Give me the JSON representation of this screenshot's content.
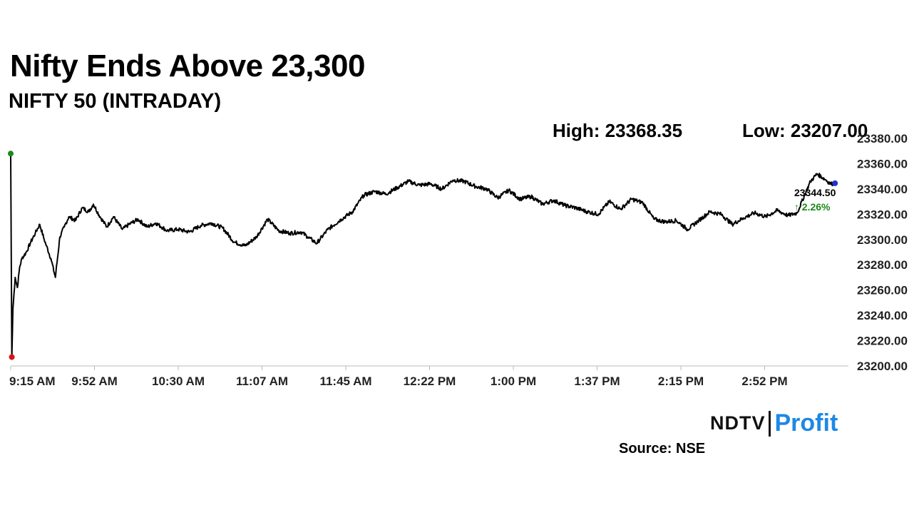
{
  "chart_data": {
    "type": "line",
    "title": "Nifty Ends Above 23,300",
    "subtitle": "NIFTY 50 (INTRADAY)",
    "high_label": "High: 23368.35",
    "low_label": "Low: 23207.00",
    "x_ticks": [
      "9:15 AM",
      "9:52 AM",
      "10:30 AM",
      "11:07 AM",
      "11:45 AM",
      "12:22 PM",
      "1:00 PM",
      "1:37 PM",
      "2:15 PM",
      "2:52 PM"
    ],
    "y_ticks": [
      "23200.00",
      "23220.00",
      "23240.00",
      "23260.00",
      "23280.00",
      "23300.00",
      "23320.00",
      "23340.00",
      "23360.00",
      "23380.00"
    ],
    "ylim": [
      23200,
      23380
    ],
    "x_range_minutes": [
      0,
      375
    ],
    "last_value_label": "23344.50",
    "change_label": "↑ 2.26%",
    "colors": {
      "line": "#000000",
      "high_marker": "#1a8a1a",
      "low_marker": "#dd1111",
      "last_marker": "#2233cc",
      "change": "#1a8a1a",
      "grid": "#d9d9d9"
    },
    "series": [
      {
        "x_unit": "minutes since 9:15 AM",
        "x": [
          0,
          0.5,
          1,
          2,
          3,
          4,
          5,
          7,
          9,
          11,
          13,
          15,
          16,
          18,
          20,
          22,
          24,
          26,
          29,
          32,
          35,
          37,
          40,
          43,
          46,
          50,
          53,
          57,
          61,
          65,
          70,
          75,
          80,
          85,
          90,
          95,
          100,
          105,
          110,
          115,
          120,
          125,
          130,
          133,
          137,
          142,
          148,
          153,
          158,
          163,
          168,
          173,
          178,
          183,
          188,
          193,
          198,
          203,
          208,
          213,
          218,
          223,
          228,
          233,
          238,
          243,
          248,
          253,
          258,
          263,
          268,
          273,
          278,
          283,
          288,
          293,
          298,
          303,
          308,
          313,
          318,
          323,
          328,
          333,
          338,
          343,
          348,
          352,
          358,
          361,
          365,
          367,
          369
        ],
        "values": [
          23368,
          23207,
          23245,
          23270,
          23262,
          23278,
          23285,
          23290,
          23298,
          23305,
          23312,
          23300,
          23295,
          23285,
          23270,
          23302,
          23310,
          23318,
          23315,
          23325,
          23322,
          23328,
          23318,
          23310,
          23318,
          23308,
          23312,
          23316,
          23310,
          23313,
          23307,
          23308,
          23306,
          23311,
          23313,
          23309,
          23298,
          23295,
          23302,
          23316,
          23307,
          23305,
          23306,
          23302,
          23297,
          23308,
          23316,
          23322,
          23335,
          23338,
          23336,
          23341,
          23346,
          23343,
          23344,
          23340,
          23347,
          23346,
          23342,
          23340,
          23333,
          23339,
          23332,
          23334,
          23328,
          23331,
          23327,
          23325,
          23322,
          23320,
          23330,
          23324,
          23332,
          23329,
          23316,
          23314,
          23315,
          23308,
          23315,
          23322,
          23320,
          23312,
          23317,
          23321,
          23318,
          23323,
          23319,
          23321,
          23346,
          23352,
          23347,
          23344,
          23344.5
        ]
      }
    ]
  },
  "source": "Source: NSE",
  "logo": {
    "ndtv": "NDTV",
    "profit": "Profit"
  }
}
